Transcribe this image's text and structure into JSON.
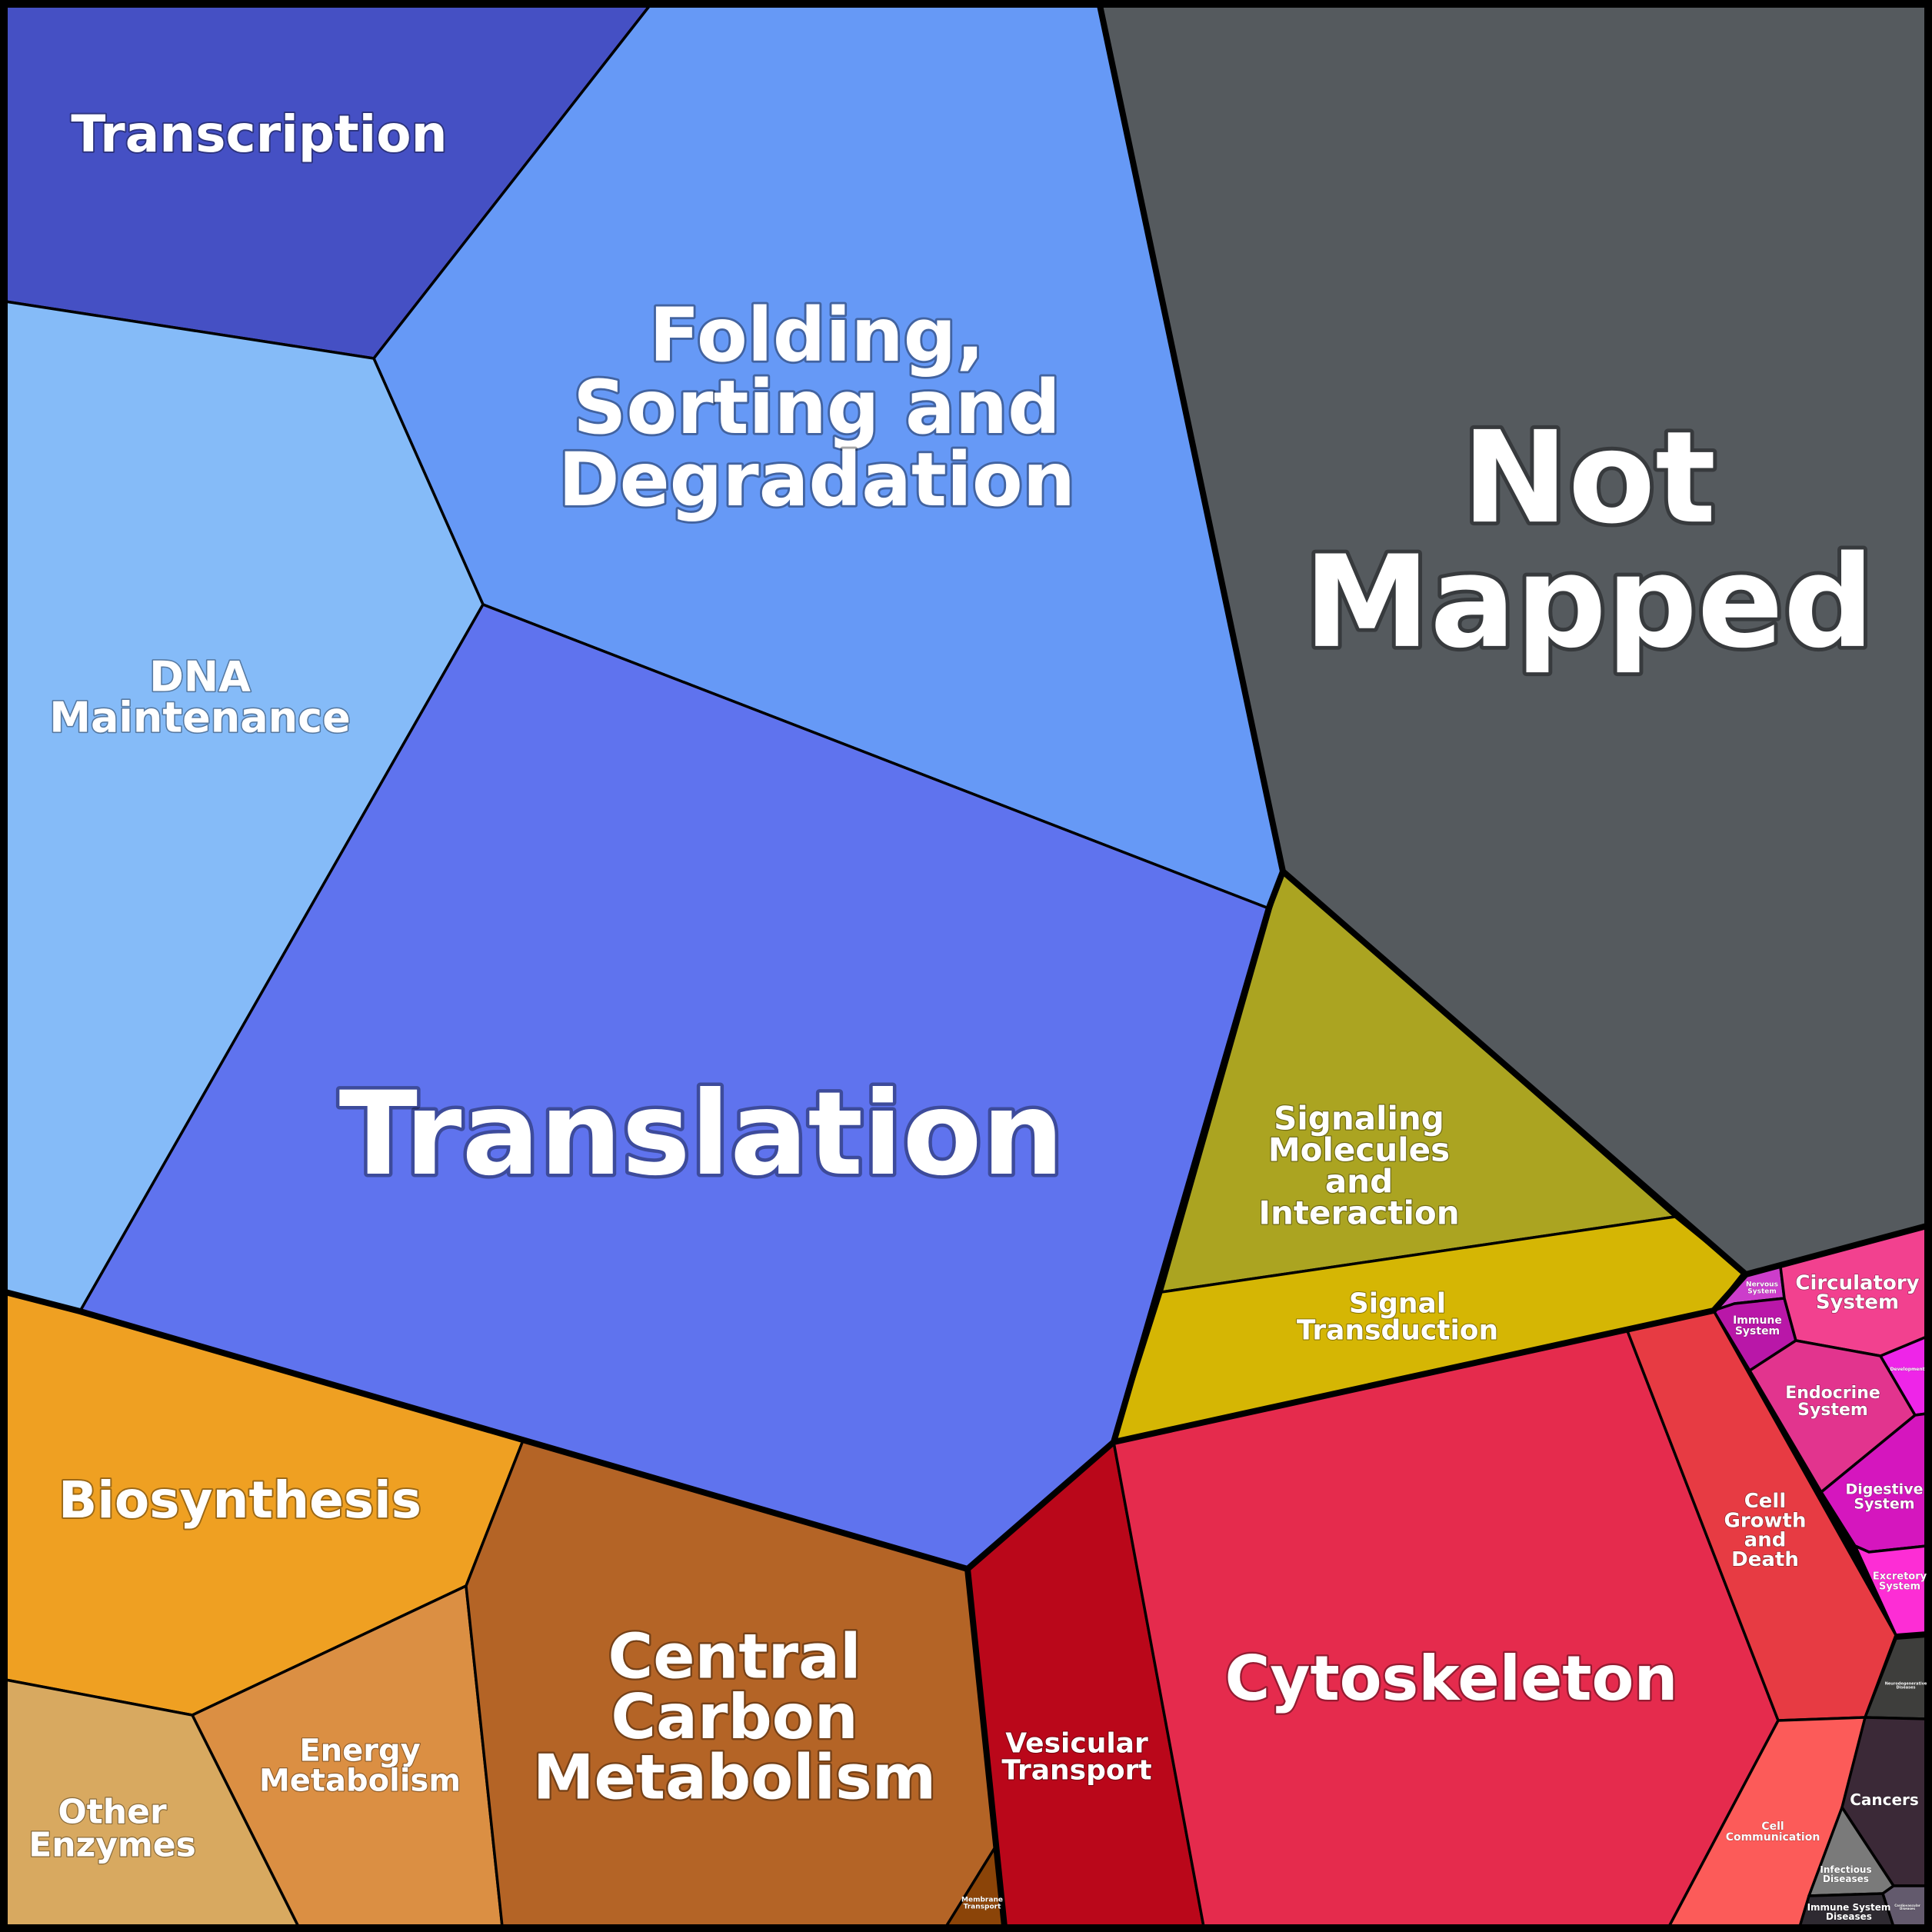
{
  "diagram": {
    "background": "#000000",
    "cells": [
      {
        "id": "transcription",
        "lines": [
          "Transcription"
        ],
        "color": "#4550C4",
        "group": "genetic"
      },
      {
        "id": "folding",
        "lines": [
          "Folding,",
          "Sorting and",
          "Degradation"
        ],
        "color": "#6699F6",
        "group": "genetic"
      },
      {
        "id": "dna-maintenance",
        "lines": [
          "DNA",
          "Maintenance"
        ],
        "color": "#85BBF8",
        "group": "genetic"
      },
      {
        "id": "translation",
        "lines": [
          "Translation"
        ],
        "color": "#5F73EE",
        "group": "genetic"
      },
      {
        "id": "not-mapped",
        "lines": [
          "Not",
          "Mapped"
        ],
        "color": "#555A5E",
        "group": "none"
      },
      {
        "id": "signaling-molecules",
        "lines": [
          "Signaling",
          "Molecules",
          "and",
          "Interaction"
        ],
        "color": "#ABA421",
        "group": "environmental"
      },
      {
        "id": "signal-transduction",
        "lines": [
          "Signal",
          "Transduction"
        ],
        "color": "#D5B604",
        "group": "environmental"
      },
      {
        "id": "biosynthesis",
        "lines": [
          "Biosynthesis"
        ],
        "color": "#EFA022",
        "group": "metabolism"
      },
      {
        "id": "energy-metabolism",
        "lines": [
          "Energy",
          "Metabolism"
        ],
        "color": "#DB8F43",
        "group": "metabolism"
      },
      {
        "id": "other-enzymes",
        "lines": [
          "Other",
          "Enzymes"
        ],
        "color": "#D8A960",
        "group": "metabolism"
      },
      {
        "id": "central-carbon",
        "lines": [
          "Central",
          "Carbon",
          "Metabolism"
        ],
        "color": "#B46426",
        "group": "metabolism"
      },
      {
        "id": "membrane-transport",
        "lines": [
          "Membrane",
          "Transport"
        ],
        "color": "#8B4408",
        "group": "cellular"
      },
      {
        "id": "vesicular-transport",
        "lines": [
          "Vesicular",
          "Transport"
        ],
        "color": "#BA071A",
        "group": "cellular"
      },
      {
        "id": "cytoskeleton",
        "lines": [
          "Cytoskeleton"
        ],
        "color": "#E52B4D",
        "group": "cellular"
      },
      {
        "id": "cell-growth",
        "lines": [
          "Cell",
          "Growth",
          "and",
          "Death"
        ],
        "color": "#E73B43",
        "group": "cellular"
      },
      {
        "id": "cell-communication",
        "lines": [
          "Cell",
          "Communication"
        ],
        "color": "#FC5B59",
        "group": "cellular"
      },
      {
        "id": "nervous-system",
        "lines": [
          "Nervous",
          "System"
        ],
        "color": "#CC3DCB",
        "group": "organismal"
      },
      {
        "id": "immune-system",
        "lines": [
          "Immune",
          "System"
        ],
        "color": "#B917A8",
        "group": "organismal"
      },
      {
        "id": "circulatory-system",
        "lines": [
          "Circulatory",
          "System"
        ],
        "color": "#F2418F",
        "group": "organismal"
      },
      {
        "id": "endocrine-system",
        "lines": [
          "Endocrine",
          "System"
        ],
        "color": "#E2348E",
        "group": "organismal"
      },
      {
        "id": "development",
        "lines": [
          "Development"
        ],
        "color": "#EE25E8",
        "group": "organismal"
      },
      {
        "id": "digestive-system",
        "lines": [
          "Digestive",
          "System"
        ],
        "color": "#D516BE",
        "group": "organismal"
      },
      {
        "id": "excretory-system",
        "lines": [
          "Excretory",
          "System"
        ],
        "color": "#FD2DD5",
        "group": "organismal"
      },
      {
        "id": "neurodegenerative",
        "lines": [
          "Neurodegenerative",
          "Diseases"
        ],
        "color": "#3E3E3C",
        "group": "disease"
      },
      {
        "id": "cancers",
        "lines": [
          "Cancers"
        ],
        "color": "#3B2937",
        "group": "disease"
      },
      {
        "id": "infectious-diseases",
        "lines": [
          "Infectious",
          "Diseases"
        ],
        "color": "#7A7A7A",
        "group": "disease"
      },
      {
        "id": "immune-system-diseases",
        "lines": [
          "Immune System",
          "Diseases"
        ],
        "color": "#2E2A31",
        "group": "disease"
      },
      {
        "id": "cardiovascular",
        "lines": [
          "Cardiovascular",
          "Diseases"
        ],
        "color": "#635A6D",
        "group": "disease"
      }
    ]
  }
}
